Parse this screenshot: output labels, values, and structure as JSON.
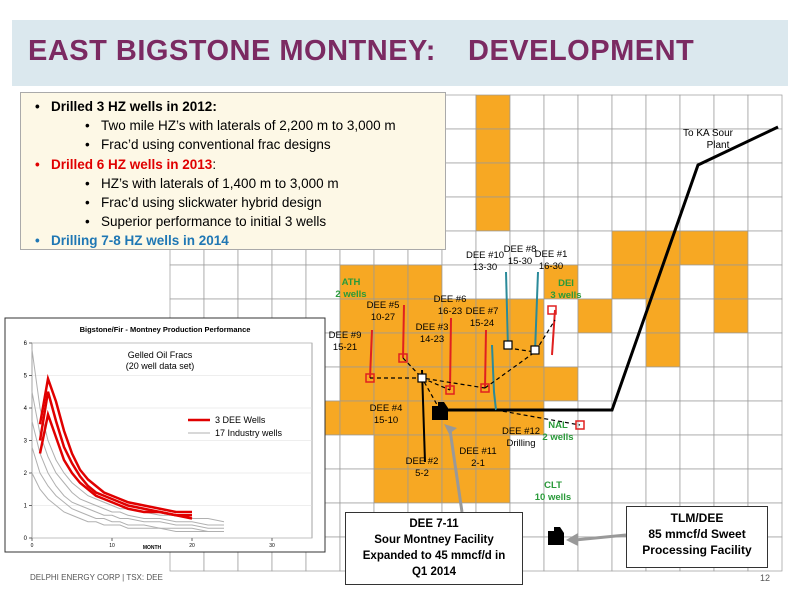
{
  "header": {
    "title": "EAST BIGSTONE MONTNEY:",
    "subtitle": "DEVELOPMENT"
  },
  "bullets": [
    {
      "text": "Drilled 3 HZ wells in 2012:",
      "level": 1,
      "color": "#000000"
    },
    {
      "text": "Two mile HZ’s with laterals of 2,200 m to 3,000 m",
      "level": 2,
      "color": "#000000"
    },
    {
      "text": "Frac’d using conventional frac designs",
      "level": 2,
      "color": "#000000"
    },
    {
      "text": "Drilled 6 HZ wells in 2013",
      "suffix": ":",
      "level": 1,
      "color": "#e00000"
    },
    {
      "text": "HZ’s with laterals of 1,400 m to 3,000 m",
      "level": 2,
      "color": "#000000"
    },
    {
      "text": "Frac’d using slickwater hybrid design",
      "level": 2,
      "color": "#000000"
    },
    {
      "text": "Superior performance to initial 3 wells",
      "level": 2,
      "color": "#000000"
    },
    {
      "text": "Drilling 7-8 HZ wells in 2014",
      "level": 1,
      "color": "#1f77b4"
    }
  ],
  "map": {
    "plant_label": [
      "To KA Sour",
      "Plant"
    ],
    "wells": [
      {
        "lines": [
          "DEE #10",
          "13-30"
        ]
      },
      {
        "lines": [
          "DEE #8",
          "15-30"
        ]
      },
      {
        "lines": [
          "DEE #1",
          "16-30"
        ]
      },
      {
        "lines": [
          "DEE #5",
          "10-27"
        ]
      },
      {
        "lines": [
          "DEE #6",
          "16-23"
        ]
      },
      {
        "lines": [
          "DEE #7",
          "15-24"
        ]
      },
      {
        "lines": [
          "DEE #9",
          "15-21"
        ]
      },
      {
        "lines": [
          "DEE #3",
          "14-23"
        ]
      },
      {
        "lines": [
          "DEE #4",
          "15-10"
        ]
      },
      {
        "lines": [
          "DEE #12",
          "Drilling"
        ]
      },
      {
        "lines": [
          "DEE #11",
          "2-1"
        ]
      },
      {
        "lines": [
          "DEE #2",
          "5-2"
        ]
      }
    ],
    "operators": [
      {
        "lines": [
          "ATH",
          "2 wells"
        ]
      },
      {
        "lines": [
          "DEI",
          "3 wells"
        ]
      },
      {
        "lines": [
          "NAL",
          "2 wells"
        ]
      },
      {
        "lines": [
          "CLT",
          "10 wells"
        ]
      }
    ]
  },
  "callouts": [
    {
      "lines": [
        "DEE 7-11",
        "Sour Montney Facility",
        "Expanded to 45 mmcf/d in",
        "Q1 2014"
      ]
    },
    {
      "lines": [
        "TLM/DEE",
        "85 mmcf/d Sweet",
        "Processing Facility"
      ]
    }
  ],
  "chart_data": {
    "type": "line",
    "title": "Bigstone/Fir - Montney Production Performance",
    "subtitle": [
      "Gelled Oil Fracs",
      "(20 well data set)"
    ],
    "x_label": "MONTH",
    "x": [
      0,
      1,
      2,
      3,
      4,
      5,
      6,
      7,
      8,
      9,
      10,
      11,
      12,
      14,
      16,
      18,
      20,
      22,
      24
    ],
    "xlim": [
      0,
      35
    ],
    "xticks": [
      0,
      10,
      20,
      30
    ],
    "ylim": [
      0,
      6
    ],
    "yticks": [
      0,
      1,
      2,
      3,
      4,
      5,
      6
    ],
    "series": [
      {
        "name": "3 DEE Wells",
        "color": "#e00000",
        "width": 2.5,
        "lines": [
          [
            null,
            3.5,
            4.9,
            4.2,
            3.3,
            2.6,
            2.1,
            1.8,
            1.6,
            1.4,
            1.3,
            1.2,
            1.1,
            1.0,
            0.9,
            0.8,
            0.8,
            null,
            null
          ],
          [
            null,
            3.0,
            4.5,
            3.6,
            2.8,
            2.3,
            1.9,
            1.6,
            1.4,
            1.3,
            1.2,
            1.1,
            1.0,
            0.9,
            0.8,
            0.7,
            0.7,
            null,
            null
          ],
          [
            null,
            2.6,
            3.8,
            3.1,
            2.4,
            2.0,
            1.7,
            1.5,
            1.3,
            1.2,
            1.1,
            1.0,
            0.9,
            0.8,
            0.8,
            0.7,
            0.6,
            null,
            null
          ]
        ]
      },
      {
        "name": "17 Industry wells",
        "color": "#b0b0b0",
        "width": 1,
        "lines": [
          [
            5.8,
            4.0,
            3.0,
            2.4,
            2.0,
            1.7,
            1.5,
            1.3,
            1.2,
            1.1,
            1.0,
            0.9,
            0.9,
            0.8,
            0.7,
            0.7,
            0.6,
            0.6,
            0.5
          ],
          [
            4.5,
            3.2,
            2.5,
            2.0,
            1.7,
            1.4,
            1.2,
            1.1,
            1.0,
            0.9,
            0.8,
            0.8,
            0.7,
            0.6,
            0.6,
            0.5,
            0.5,
            0.4,
            0.4
          ],
          [
            3.6,
            2.6,
            2.0,
            1.6,
            1.3,
            1.1,
            1.0,
            0.9,
            0.8,
            0.7,
            0.7,
            0.6,
            0.6,
            0.5,
            0.5,
            0.4,
            0.4,
            0.3,
            0.3
          ],
          [
            2.8,
            2.0,
            1.6,
            1.3,
            1.1,
            0.9,
            0.8,
            0.7,
            0.6,
            0.6,
            0.5,
            0.5,
            0.4,
            0.4,
            0.3,
            0.3,
            0.3,
            0.2,
            0.2
          ],
          [
            2.0,
            1.5,
            1.2,
            1.0,
            0.8,
            0.7,
            0.6,
            0.5,
            0.5,
            0.4,
            0.4,
            0.4,
            0.3,
            0.3,
            0.3,
            0.2,
            0.2,
            0.2,
            0.2
          ]
        ]
      }
    ]
  },
  "footer": {
    "left": "DELPHI ENERGY CORP | TSX: DEE",
    "page": "12"
  }
}
